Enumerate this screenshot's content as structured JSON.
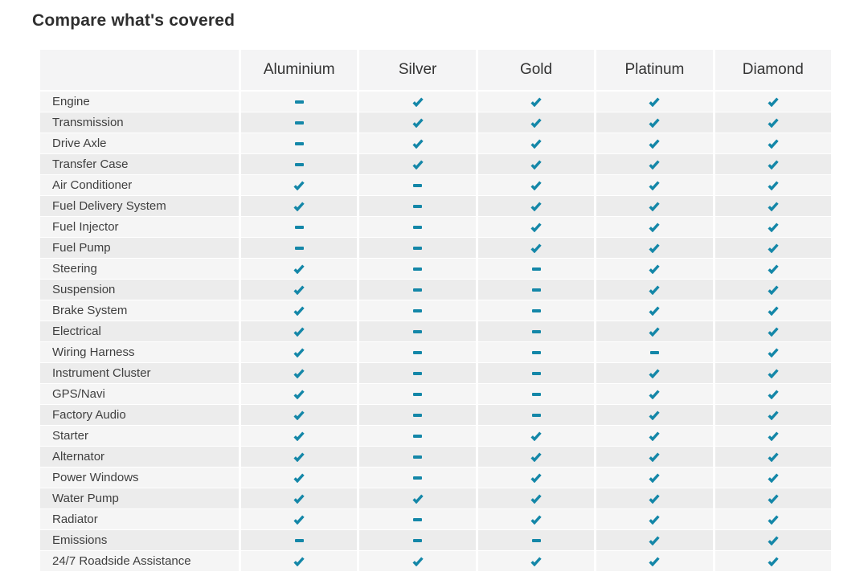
{
  "page": {
    "title": "Compare what's covered"
  },
  "colors": {
    "accent_teal": "#1487A8",
    "header_bg": "#f4f4f5",
    "row_light": "#f5f5f5",
    "row_dark": "#ececec",
    "title_text": "#2f2f2f",
    "header_text": "#333333",
    "label_text": "#3f3f3f",
    "page_bg": "#ffffff"
  },
  "icons": {
    "covered": "check-icon",
    "not_covered": "dash-icon"
  },
  "table": {
    "plan_headers": [
      "Aluminium",
      "Silver",
      "Gold",
      "Platinum",
      "Diamond"
    ],
    "rows": [
      {
        "label": "Engine",
        "coverage": [
          false,
          true,
          true,
          true,
          true
        ]
      },
      {
        "label": "Transmission",
        "coverage": [
          false,
          true,
          true,
          true,
          true
        ]
      },
      {
        "label": "Drive Axle",
        "coverage": [
          false,
          true,
          true,
          true,
          true
        ]
      },
      {
        "label": "Transfer Case",
        "coverage": [
          false,
          true,
          true,
          true,
          true
        ]
      },
      {
        "label": "Air Conditioner",
        "coverage": [
          true,
          false,
          true,
          true,
          true
        ]
      },
      {
        "label": "Fuel Delivery System",
        "coverage": [
          true,
          false,
          true,
          true,
          true
        ]
      },
      {
        "label": "Fuel Injector",
        "coverage": [
          false,
          false,
          true,
          true,
          true
        ]
      },
      {
        "label": "Fuel Pump",
        "coverage": [
          false,
          false,
          true,
          true,
          true
        ]
      },
      {
        "label": "Steering",
        "coverage": [
          true,
          false,
          false,
          true,
          true
        ]
      },
      {
        "label": "Suspension",
        "coverage": [
          true,
          false,
          false,
          true,
          true
        ]
      },
      {
        "label": "Brake System",
        "coverage": [
          true,
          false,
          false,
          true,
          true
        ]
      },
      {
        "label": "Electrical",
        "coverage": [
          true,
          false,
          false,
          true,
          true
        ]
      },
      {
        "label": "Wiring Harness",
        "coverage": [
          true,
          false,
          false,
          false,
          true
        ]
      },
      {
        "label": "Instrument Cluster",
        "coverage": [
          true,
          false,
          false,
          true,
          true
        ]
      },
      {
        "label": "GPS/Navi",
        "coverage": [
          true,
          false,
          false,
          true,
          true
        ]
      },
      {
        "label": "Factory Audio",
        "coverage": [
          true,
          false,
          false,
          true,
          true
        ]
      },
      {
        "label": "Starter",
        "coverage": [
          true,
          false,
          true,
          true,
          true
        ]
      },
      {
        "label": "Alternator",
        "coverage": [
          true,
          false,
          true,
          true,
          true
        ]
      },
      {
        "label": "Power Windows",
        "coverage": [
          true,
          false,
          true,
          true,
          true
        ]
      },
      {
        "label": "Water Pump",
        "coverage": [
          true,
          true,
          true,
          true,
          true
        ]
      },
      {
        "label": "Radiator",
        "coverage": [
          true,
          false,
          true,
          true,
          true
        ]
      },
      {
        "label": "Emissions",
        "coverage": [
          false,
          false,
          false,
          true,
          true
        ]
      },
      {
        "label": "24/7 Roadside Assistance",
        "coverage": [
          true,
          true,
          true,
          true,
          true
        ]
      }
    ]
  }
}
